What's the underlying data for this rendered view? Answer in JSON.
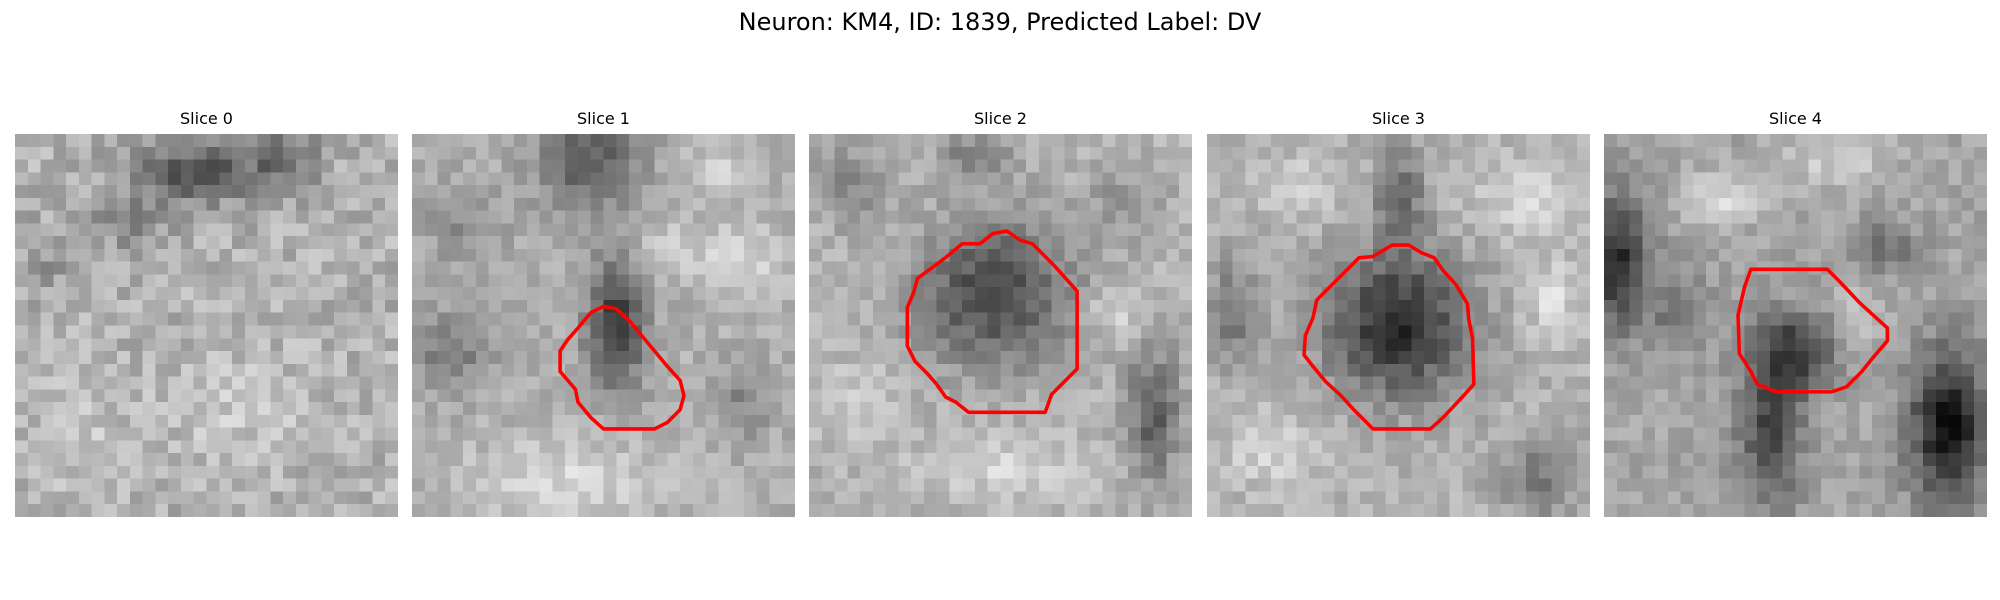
{
  "figure": {
    "title": "Neuron: KM4, ID: 1839, Predicted Label: DV"
  },
  "colors": {
    "contour": "#ff0000",
    "background": "#ffffff"
  },
  "panels": [
    {
      "title": "Slice 0",
      "has_contour": false
    },
    {
      "title": "Slice 1",
      "has_contour": true
    },
    {
      "title": "Slice 2",
      "has_contour": true
    },
    {
      "title": "Slice 3",
      "has_contour": true
    },
    {
      "title": "Slice 4",
      "has_contour": true
    }
  ]
}
